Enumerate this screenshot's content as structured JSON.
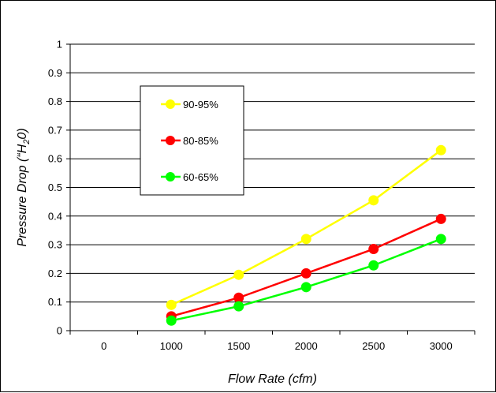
{
  "chart_data": {
    "type": "line",
    "categories": [
      "0",
      "1000",
      "1500",
      "2000",
      "2500",
      "3000"
    ],
    "series": [
      {
        "name": "90-95%",
        "color": "#ffff00",
        "values": [
          null,
          0.09,
          0.195,
          0.32,
          0.455,
          0.63
        ]
      },
      {
        "name": "80-85%",
        "color": "#ff0000",
        "values": [
          null,
          0.05,
          0.115,
          0.2,
          0.285,
          0.39
        ]
      },
      {
        "name": "60-65%",
        "color": "#00ff00",
        "values": [
          null,
          0.035,
          0.085,
          0.152,
          0.228,
          0.32
        ]
      }
    ],
    "xlabel": "Flow Rate (cfm)",
    "ylabel": {
      "prefix": "Pressure Drop (“H",
      "subscript": "2",
      "suffix": "0)"
    },
    "ylim": [
      0,
      1
    ],
    "yticks": [
      "0",
      "0.1",
      "0.2",
      "0.3",
      "0.4",
      "0.5",
      "0.6",
      "0.7",
      "0.8",
      "0.9",
      "1"
    ],
    "grid": "horizontal",
    "legend_position": "upper-left"
  }
}
